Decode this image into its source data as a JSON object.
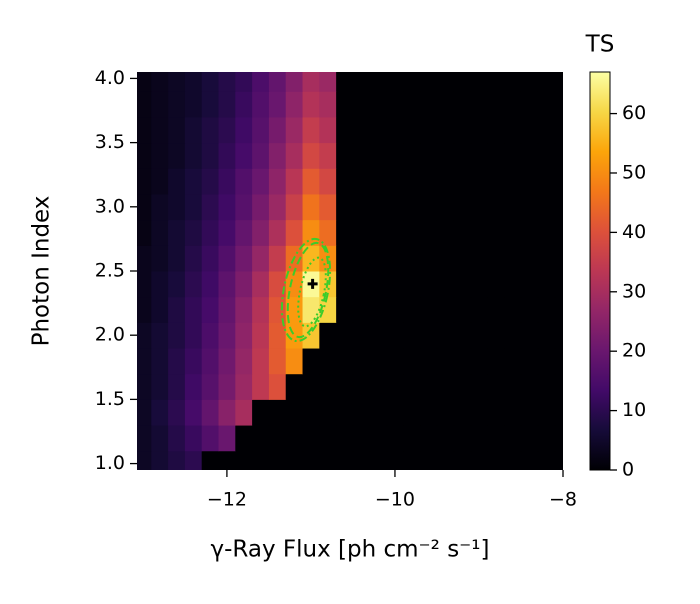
{
  "chart_data": {
    "type": "heatmap",
    "xlabel": "γ-Ray Flux [ph cm⁻² s⁻¹]",
    "ylabel": "Photon Index",
    "colorbar_label": "TS",
    "colormap": "inferno",
    "clim": [
      0,
      67
    ],
    "xlim": [
      -13.07,
      -8.0
    ],
    "ylim": [
      0.95,
      4.05
    ],
    "xticks": [
      {
        "value": -12,
        "label": "−12"
      },
      {
        "value": -10,
        "label": "−10"
      },
      {
        "value": -8,
        "label": "−8"
      }
    ],
    "yticks": [
      {
        "value": 1,
        "label": "1.0"
      },
      1.5,
      {
        "value": 2,
        "label": "2.0"
      },
      2.5,
      {
        "value": 3,
        "label": "3.0"
      },
      3.5,
      {
        "value": 4,
        "label": "4.0"
      }
    ],
    "cticks": [
      0,
      10,
      20,
      30,
      40,
      50,
      60
    ],
    "x": [
      -13.0,
      -12.8,
      -12.6,
      -12.4,
      -12.2,
      -12.0,
      -11.8,
      -11.6,
      -11.4,
      -11.2,
      -11.0,
      -10.8,
      -10.6,
      -10.4,
      -10.2,
      -10.0,
      -9.8,
      -9.6,
      -9.4,
      -9.2,
      -9.0,
      -8.8,
      -8.6,
      -8.4,
      -8.2,
      -8.0
    ],
    "y": [
      1.0,
      1.2,
      1.4,
      1.6,
      1.8,
      2.0,
      2.2,
      2.4,
      2.6,
      2.8,
      3.0,
      3.2,
      3.4,
      3.6,
      3.8,
      4.0
    ],
    "z": [
      [
        4,
        6,
        8,
        10,
        0,
        0,
        0,
        0,
        0,
        0,
        0,
        0,
        0,
        0,
        0,
        0,
        0,
        0,
        0,
        0,
        0,
        0,
        0,
        0,
        0,
        0
      ],
      [
        4,
        6,
        9,
        12,
        16,
        20,
        0,
        0,
        0,
        0,
        0,
        0,
        0,
        0,
        0,
        0,
        0,
        0,
        0,
        0,
        0,
        0,
        0,
        0,
        0,
        0
      ],
      [
        4,
        7,
        10,
        14,
        19,
        25,
        30,
        0,
        0,
        0,
        0,
        0,
        0,
        0,
        0,
        0,
        0,
        0,
        0,
        0,
        0,
        0,
        0,
        0,
        0,
        0
      ],
      [
        4,
        6,
        9,
        13,
        17,
        22,
        28,
        34,
        40,
        0,
        0,
        0,
        0,
        0,
        0,
        0,
        0,
        0,
        0,
        0,
        0,
        0,
        0,
        0,
        0,
        0
      ],
      [
        4,
        6,
        9,
        12,
        16,
        21,
        27,
        34,
        42,
        50,
        0,
        0,
        0,
        0,
        0,
        0,
        0,
        0,
        0,
        0,
        0,
        0,
        0,
        0,
        0,
        0
      ],
      [
        4,
        6,
        8,
        11,
        15,
        20,
        26,
        33,
        42,
        52,
        58,
        0,
        0,
        0,
        0,
        0,
        0,
        0,
        0,
        0,
        0,
        0,
        0,
        0,
        0,
        0
      ],
      [
        3,
        5,
        8,
        11,
        14,
        19,
        25,
        32,
        41,
        52,
        63,
        60,
        0,
        0,
        0,
        0,
        0,
        0,
        0,
        0,
        0,
        0,
        0,
        0,
        0,
        0
      ],
      [
        3,
        5,
        7,
        10,
        13,
        18,
        23,
        30,
        39,
        50,
        66,
        58,
        0,
        0,
        0,
        0,
        0,
        0,
        0,
        0,
        0,
        0,
        0,
        0,
        0,
        0
      ],
      [
        3,
        4,
        6,
        9,
        12,
        16,
        21,
        27,
        35,
        45,
        56,
        50,
        0,
        0,
        0,
        0,
        0,
        0,
        0,
        0,
        0,
        0,
        0,
        0,
        0,
        0
      ],
      [
        2,
        4,
        6,
        8,
        11,
        14,
        19,
        24,
        31,
        40,
        50,
        45,
        0,
        0,
        0,
        0,
        0,
        0,
        0,
        0,
        0,
        0,
        0,
        0,
        0,
        0
      ],
      [
        2,
        4,
        5,
        7,
        10,
        13,
        17,
        22,
        28,
        36,
        46,
        42,
        0,
        0,
        0,
        0,
        0,
        0,
        0,
        0,
        0,
        0,
        0,
        0,
        0,
        0
      ],
      [
        2,
        3,
        5,
        7,
        9,
        12,
        16,
        20,
        26,
        33,
        42,
        38,
        0,
        0,
        0,
        0,
        0,
        0,
        0,
        0,
        0,
        0,
        0,
        0,
        0,
        0
      ],
      [
        2,
        3,
        4,
        6,
        8,
        11,
        14,
        18,
        24,
        30,
        38,
        35,
        0,
        0,
        0,
        0,
        0,
        0,
        0,
        0,
        0,
        0,
        0,
        0,
        0,
        0
      ],
      [
        2,
        3,
        4,
        6,
        8,
        10,
        13,
        17,
        22,
        28,
        35,
        32,
        0,
        0,
        0,
        0,
        0,
        0,
        0,
        0,
        0,
        0,
        0,
        0,
        0,
        0
      ],
      [
        2,
        3,
        4,
        5,
        7,
        9,
        12,
        16,
        20,
        26,
        32,
        30,
        0,
        0,
        0,
        0,
        0,
        0,
        0,
        0,
        0,
        0,
        0,
        0,
        0,
        0
      ],
      [
        2,
        3,
        4,
        5,
        7,
        9,
        11,
        15,
        19,
        24,
        30,
        28,
        0,
        0,
        0,
        0,
        0,
        0,
        0,
        0,
        0,
        0,
        0,
        0,
        0,
        0
      ]
    ],
    "best_fit": {
      "x": -10.98,
      "y": 2.4
    }
  }
}
